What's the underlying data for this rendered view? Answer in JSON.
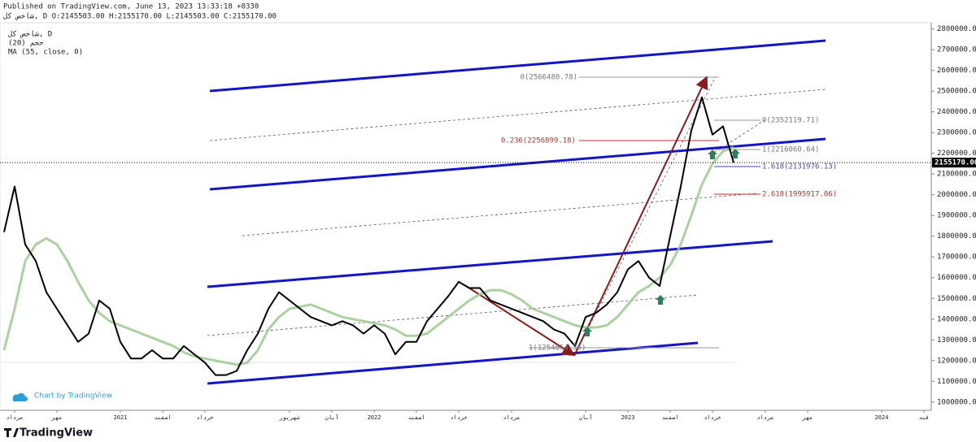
{
  "chart_data": {
    "type": "line",
    "published": "Published on TradingView.com, June 13, 2023 13:33:18 +0330",
    "header": "شاخص کل, D O:2145503.00 H:2155170.00 L:2145503.00 C:2155170.00",
    "indicator_label": "حجم (20)",
    "attribution": "Chart by TradingView",
    "brand": "TradingView",
    "last_price_label": "2155170.00",
    "annotations": [
      "0(2566480.78)",
      "0.236(2256899.18)",
      "0(2352119.71)",
      "1(2216060.64)",
      "1.618(2131976.13)",
      "2.618(1995917.06)",
      "1(1254654.36)"
    ],
    "categories": [
      null,
      "مرداد",
      null,
      null,
      null,
      "مهر",
      null,
      null,
      null,
      null,
      null,
      "2021",
      null,
      null,
      null,
      "اسفند",
      null,
      null,
      null,
      "خرداد",
      null,
      null,
      null,
      null,
      null,
      null,
      null,
      "شهریور",
      null,
      null,
      null,
      "آبان",
      null,
      null,
      null,
      "2022",
      null,
      null,
      null,
      "اسفند",
      null,
      null,
      null,
      "خرداد",
      null,
      null,
      null,
      null,
      "مرداد",
      null,
      null,
      null,
      null,
      null,
      null,
      "آبان",
      null,
      null,
      null,
      "2023",
      null,
      null,
      null,
      "اسفند",
      null,
      null,
      null,
      "خرداد",
      null,
      null,
      null,
      null,
      "مرداد",
      null,
      null,
      null,
      "مهر",
      null,
      null,
      null,
      null,
      null,
      null,
      "2024",
      null,
      null,
      null,
      "فند"
    ],
    "series": [
      {
        "name": "شاخص کل, D",
        "color": "#000000",
        "values": [
          1820000,
          2040000,
          1760000,
          1680000,
          1530000,
          1450000,
          1370000,
          1290000,
          1330000,
          1490000,
          1450000,
          1290000,
          1210000,
          1210000,
          1250000,
          1210000,
          1210000,
          1270000,
          1230000,
          1190000,
          1130000,
          1130000,
          1150000,
          1250000,
          1330000,
          1450000,
          1530000,
          1490000,
          1450000,
          1410000,
          1390000,
          1370000,
          1390000,
          1370000,
          1330000,
          1370000,
          1330000,
          1230000,
          1290000,
          1290000,
          1390000,
          1450000,
          1510000,
          1580000,
          1550000,
          1550000,
          1490000,
          1470000,
          1450000,
          1430000,
          1410000,
          1390000,
          1350000,
          1330000,
          1270000,
          1410000,
          1430000,
          1470000,
          1530000,
          1640000,
          1680000,
          1600000,
          1560000,
          1800000,
          2040000,
          2310000,
          2470000,
          2290000,
          2330000,
          2155170,
          null,
          null,
          null,
          null,
          null,
          null,
          null,
          null,
          null,
          null,
          null,
          null,
          null,
          null,
          null,
          null,
          null,
          null
        ]
      },
      {
        "name": "MA (55, close, 0)",
        "color": "#9dc98f",
        "values": [
          1250000,
          1450000,
          1680000,
          1760000,
          1790000,
          1760000,
          1680000,
          1580000,
          1490000,
          1430000,
          1390000,
          1370000,
          1350000,
          1330000,
          1310000,
          1290000,
          1270000,
          1240000,
          1220000,
          1210000,
          1200000,
          1190000,
          1180000,
          1190000,
          1250000,
          1350000,
          1410000,
          1450000,
          1460000,
          1470000,
          1450000,
          1430000,
          1410000,
          1400000,
          1390000,
          1380000,
          1370000,
          1350000,
          1320000,
          1320000,
          1330000,
          1370000,
          1410000,
          1450000,
          1490000,
          1520000,
          1540000,
          1540000,
          1520000,
          1490000,
          1450000,
          1430000,
          1410000,
          1390000,
          1370000,
          1360000,
          1360000,
          1370000,
          1410000,
          1470000,
          1530000,
          1560000,
          1600000,
          1660000,
          1760000,
          1900000,
          2050000,
          2150000,
          2210000,
          2230000,
          null,
          null,
          null,
          null,
          null,
          null,
          null,
          null,
          null,
          null,
          null,
          null,
          null,
          null,
          null,
          null,
          null,
          null
        ]
      }
    ],
    "ylim": [
      960000,
      2830000
    ],
    "yticks": [
      {
        "value": 1000000,
        "label": "1000000.00"
      },
      {
        "value": 1100000,
        "label": "1100000.00"
      },
      {
        "value": 1200000,
        "label": "1200000.00"
      },
      {
        "value": 1300000,
        "label": "1300000.00"
      },
      {
        "value": 1400000,
        "label": "1400000.00"
      },
      {
        "value": 1500000,
        "label": "1500000.00"
      },
      {
        "value": 1600000,
        "label": "1600000.00"
      },
      {
        "value": 1700000,
        "label": "1700000.00"
      },
      {
        "value": 1800000,
        "label": "1800000.00"
      },
      {
        "value": 1900000,
        "label": "1900000.00"
      },
      {
        "value": 2000000,
        "label": "2000000.00"
      },
      {
        "value": 2100000,
        "label": "2100000.00"
      },
      {
        "value": 2200000,
        "label": "2200000.00"
      },
      {
        "value": 2300000,
        "label": "2300000.00"
      },
      {
        "value": 2400000,
        "label": "2400000.00"
      },
      {
        "value": 2500000,
        "label": "2500000.00"
      },
      {
        "value": 2600000,
        "label": "2600000.00"
      },
      {
        "value": 2700000,
        "label": "2700000.00"
      },
      {
        "value": 2800000,
        "label": "2800000.00"
      }
    ],
    "grid": false
  }
}
